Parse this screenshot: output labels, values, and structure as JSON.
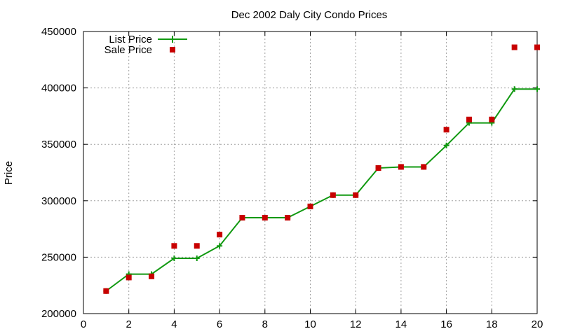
{
  "chart_data": {
    "type": "line",
    "title": "Dec 2002 Daly City Condo Prices",
    "xlabel": "",
    "ylabel": "Price",
    "xlim": [
      0,
      20
    ],
    "ylim": [
      200000,
      450000
    ],
    "xticks": [
      0,
      2,
      4,
      6,
      8,
      10,
      12,
      14,
      16,
      18,
      20
    ],
    "yticks": [
      200000,
      250000,
      300000,
      350000,
      400000,
      450000
    ],
    "grid": true,
    "legend_position": "top-left",
    "series": [
      {
        "name": "List Price",
        "style": "line+cross",
        "color": "#109910",
        "x": [
          1,
          2,
          3,
          4,
          5,
          6,
          7,
          8,
          9,
          10,
          11,
          12,
          13,
          14,
          15,
          16,
          17,
          18,
          19,
          20
        ],
        "y": [
          220000,
          235000,
          235000,
          249000,
          249000,
          260000,
          285000,
          285000,
          285000,
          295000,
          305000,
          305000,
          329000,
          330000,
          330000,
          349000,
          369000,
          369000,
          399000,
          399000
        ]
      },
      {
        "name": "Sale Price",
        "style": "square",
        "color": "#c80000",
        "x": [
          1,
          2,
          3,
          4,
          5,
          6,
          7,
          8,
          9,
          10,
          11,
          12,
          13,
          14,
          15,
          16,
          17,
          18,
          19,
          20
        ],
        "y": [
          220000,
          232000,
          233000,
          260000,
          260000,
          270000,
          285000,
          285000,
          285000,
          295000,
          305000,
          305000,
          329000,
          330000,
          330000,
          363000,
          372000,
          372000,
          436000,
          436000
        ]
      }
    ]
  }
}
